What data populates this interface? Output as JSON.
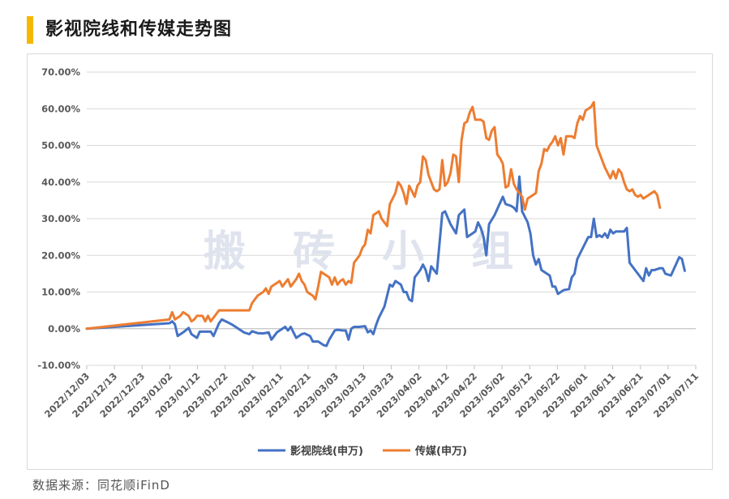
{
  "header": {
    "title": "影视院线和传媒走势图"
  },
  "footer": {
    "source": "数据来源：同花顺iFinD"
  },
  "watermark": "搬 砖 小 组",
  "colors": {
    "accent": "#f5b800",
    "series1": "#4472c4",
    "series2": "#ed7d31",
    "grid": "#d9d9d9"
  },
  "chart_data": {
    "type": "line",
    "title": "影视院线和传媒走势图",
    "xlabel": "",
    "ylabel": "",
    "ylim": [
      -10,
      70
    ],
    "ytick_labels": [
      "-10.00%",
      "0.00%",
      "10.00%",
      "20.00%",
      "30.00%",
      "40.00%",
      "50.00%",
      "60.00%",
      "70.00%"
    ],
    "ytick_values": [
      -10,
      0,
      10,
      20,
      30,
      40,
      50,
      60,
      70
    ],
    "xtick_labels": [
      "2022/12/03",
      "2022/12/13",
      "2022/12/23",
      "2023/01/02",
      "2023/01/12",
      "2023/01/22",
      "2023/02/01",
      "2023/02/11",
      "2023/02/21",
      "2023/03/03",
      "2023/03/13",
      "2023/03/23",
      "2023/04/02",
      "2023/04/12",
      "2023/04/22",
      "2023/05/02",
      "2023/05/12",
      "2023/05/22",
      "2023/06/01",
      "2023/06/11",
      "2023/06/21",
      "2023/07/01",
      "2023/07/11"
    ],
    "x_range_days": [
      0,
      221
    ],
    "legend": "bottom-center",
    "series": [
      {
        "name": "影视院线(申万)",
        "color": "#4472c4",
        "points": [
          [
            0,
            0
          ],
          [
            30,
            1.5
          ],
          [
            31,
            2
          ],
          [
            32,
            1.2
          ],
          [
            33,
            -2
          ],
          [
            35,
            -1
          ],
          [
            37,
            0.2
          ],
          [
            38,
            -1.5
          ],
          [
            40,
            -2.5
          ],
          [
            41,
            -0.8
          ],
          [
            43,
            -0.8
          ],
          [
            45,
            -0.8
          ],
          [
            46,
            -2
          ],
          [
            48,
            1.5
          ],
          [
            49,
            2.5
          ],
          [
            51,
            1.8
          ],
          [
            53,
            1
          ],
          [
            55,
            0
          ],
          [
            57,
            -1
          ],
          [
            59,
            -1.5
          ],
          [
            60,
            -0.7
          ],
          [
            62,
            -1.2
          ],
          [
            64,
            -1.3
          ],
          [
            66,
            -1
          ],
          [
            67,
            -3
          ],
          [
            68,
            -2
          ],
          [
            69,
            -1
          ],
          [
            71,
            0
          ],
          [
            72,
            0.5
          ],
          [
            73,
            -0.5
          ],
          [
            74,
            0.5
          ],
          [
            76,
            -2.5
          ],
          [
            78,
            -1.5
          ],
          [
            79,
            -1.3
          ],
          [
            81,
            -2
          ],
          [
            82,
            -3.5
          ],
          [
            84,
            -3.5
          ],
          [
            86,
            -4.5
          ],
          [
            87,
            -4.7
          ],
          [
            88,
            -3
          ],
          [
            90,
            -0.5
          ],
          [
            91,
            -0.3
          ],
          [
            93,
            -0.5
          ],
          [
            94,
            -0.5
          ],
          [
            95,
            -3
          ],
          [
            96,
            0
          ],
          [
            97,
            0.5
          ],
          [
            99,
            0.5
          ],
          [
            101,
            0.7
          ],
          [
            102,
            -1
          ],
          [
            103,
            -0.5
          ],
          [
            104,
            -1.5
          ],
          [
            105,
            1
          ],
          [
            106,
            3
          ],
          [
            108,
            6
          ],
          [
            110,
            12
          ],
          [
            111,
            11.5
          ],
          [
            112,
            13
          ],
          [
            114,
            12
          ],
          [
            115,
            10
          ],
          [
            116,
            10
          ],
          [
            117,
            8
          ],
          [
            118,
            7.5
          ],
          [
            119,
            14
          ],
          [
            121,
            16
          ],
          [
            122,
            17.5
          ],
          [
            123,
            16
          ],
          [
            124,
            13
          ],
          [
            125,
            17
          ],
          [
            126,
            16
          ],
          [
            127,
            15
          ],
          [
            129,
            31.5
          ],
          [
            130,
            32
          ],
          [
            132,
            28.5
          ],
          [
            134,
            26
          ],
          [
            135,
            31
          ],
          [
            137,
            32.5
          ],
          [
            138,
            25
          ],
          [
            140,
            26
          ],
          [
            141,
            26.5
          ],
          [
            142,
            29
          ],
          [
            143,
            27.5
          ],
          [
            144,
            25
          ],
          [
            145,
            20
          ],
          [
            146,
            28.5
          ],
          [
            148,
            31
          ],
          [
            151,
            36
          ],
          [
            152,
            34
          ],
          [
            154,
            33.5
          ],
          [
            155,
            33
          ],
          [
            156,
            32
          ],
          [
            157,
            41.5
          ],
          [
            158,
            32
          ],
          [
            160,
            29
          ],
          [
            161,
            26
          ],
          [
            162,
            20
          ],
          [
            163,
            17.5
          ],
          [
            164,
            19
          ],
          [
            165,
            16
          ],
          [
            167,
            15
          ],
          [
            168,
            14.5
          ],
          [
            169,
            11.5
          ],
          [
            170,
            11.5
          ],
          [
            171,
            9.5
          ],
          [
            172,
            10
          ],
          [
            173,
            10.5
          ],
          [
            175,
            10.8
          ],
          [
            176,
            14
          ],
          [
            177,
            15
          ],
          [
            178,
            19
          ],
          [
            179,
            20.5
          ],
          [
            180,
            22
          ],
          [
            182,
            25
          ],
          [
            183,
            25
          ],
          [
            184,
            30
          ],
          [
            185,
            25
          ],
          [
            186,
            25.5
          ],
          [
            187,
            25
          ],
          [
            188,
            26
          ],
          [
            189,
            24.8
          ],
          [
            190,
            27
          ],
          [
            191,
            26
          ],
          [
            192,
            26.5
          ],
          [
            193,
            26.5
          ],
          [
            195,
            26.5
          ],
          [
            196,
            27.5
          ],
          [
            197,
            18
          ],
          [
            199,
            16
          ],
          [
            201,
            14
          ],
          [
            202,
            13
          ],
          [
            203,
            16.5
          ],
          [
            204,
            14.5
          ],
          [
            205,
            16
          ],
          [
            206,
            16
          ],
          [
            208,
            16.5
          ],
          [
            209,
            16.5
          ],
          [
            210,
            15
          ],
          [
            212,
            14.5
          ],
          [
            215,
            19.5
          ],
          [
            216,
            19
          ],
          [
            217,
            15.8
          ]
        ]
      },
      {
        "name": "传媒(申万)",
        "color": "#ed7d31",
        "points": [
          [
            0,
            0
          ],
          [
            30,
            2.5
          ],
          [
            31,
            4.5
          ],
          [
            32,
            2.5
          ],
          [
            34,
            3.5
          ],
          [
            35,
            4.5
          ],
          [
            37,
            3.5
          ],
          [
            38,
            2
          ],
          [
            39,
            2.5
          ],
          [
            40,
            3.5
          ],
          [
            42,
            3.5
          ],
          [
            43,
            2
          ],
          [
            44,
            3.5
          ],
          [
            45,
            2
          ],
          [
            47,
            4
          ],
          [
            48,
            5
          ],
          [
            50,
            5
          ],
          [
            52,
            5
          ],
          [
            54,
            5
          ],
          [
            56,
            5
          ],
          [
            58,
            5
          ],
          [
            59,
            5
          ],
          [
            60,
            7
          ],
          [
            62,
            9
          ],
          [
            64,
            10
          ],
          [
            65,
            11
          ],
          [
            66,
            9.5
          ],
          [
            67,
            11.5
          ],
          [
            69,
            12.5
          ],
          [
            70,
            13
          ],
          [
            71,
            11.5
          ],
          [
            72,
            12.5
          ],
          [
            73,
            13.5
          ],
          [
            74,
            11.5
          ],
          [
            75,
            12.5
          ],
          [
            76,
            13.5
          ],
          [
            77,
            15
          ],
          [
            78,
            13
          ],
          [
            79,
            12
          ],
          [
            80,
            10
          ],
          [
            81,
            9.5
          ],
          [
            82,
            9
          ],
          [
            83,
            8
          ],
          [
            84,
            11.5
          ],
          [
            85,
            15.5
          ],
          [
            86,
            15
          ],
          [
            87,
            14.5
          ],
          [
            88,
            14
          ],
          [
            89,
            12
          ],
          [
            90,
            14
          ],
          [
            91,
            12
          ],
          [
            92,
            13
          ],
          [
            93,
            13.5
          ],
          [
            94,
            12
          ],
          [
            95,
            13
          ],
          [
            96,
            12.5
          ],
          [
            97,
            18
          ],
          [
            98,
            19
          ],
          [
            99,
            20
          ],
          [
            100,
            22
          ],
          [
            101,
            23
          ],
          [
            102,
            27
          ],
          [
            103,
            26
          ],
          [
            104,
            31
          ],
          [
            105,
            31.5
          ],
          [
            106,
            32
          ],
          [
            107,
            30
          ],
          [
            108,
            29
          ],
          [
            109,
            28
          ],
          [
            110,
            34
          ],
          [
            112,
            37
          ],
          [
            113,
            40
          ],
          [
            114,
            39
          ],
          [
            115,
            37
          ],
          [
            116,
            34
          ],
          [
            117,
            39
          ],
          [
            118,
            37.5
          ],
          [
            119,
            36
          ],
          [
            120,
            39
          ],
          [
            121,
            40
          ],
          [
            122,
            47
          ],
          [
            123,
            46
          ],
          [
            124,
            42
          ],
          [
            125,
            40
          ],
          [
            126,
            38
          ],
          [
            127,
            37.5
          ],
          [
            128,
            38
          ],
          [
            129,
            46
          ],
          [
            130,
            39
          ],
          [
            131,
            40
          ],
          [
            132,
            42.5
          ],
          [
            133,
            47.5
          ],
          [
            134,
            47
          ],
          [
            135,
            40
          ],
          [
            136,
            51.5
          ],
          [
            137,
            56
          ],
          [
            138,
            56.5
          ],
          [
            139,
            59
          ],
          [
            140,
            60.5
          ],
          [
            141,
            57
          ],
          [
            142,
            57
          ],
          [
            143,
            57
          ],
          [
            144,
            56.5
          ],
          [
            145,
            52
          ],
          [
            146,
            51.5
          ],
          [
            147,
            54
          ],
          [
            148,
            55
          ],
          [
            149,
            47.5
          ],
          [
            150,
            46.5
          ],
          [
            151,
            45
          ],
          [
            152,
            38.5
          ],
          [
            153,
            39
          ],
          [
            154,
            43.5
          ],
          [
            155,
            39.5
          ],
          [
            156,
            38
          ],
          [
            157,
            37
          ],
          [
            158,
            36
          ],
          [
            159,
            32.5
          ],
          [
            160,
            35.5
          ],
          [
            161,
            36
          ],
          [
            162,
            36.5
          ],
          [
            163,
            37
          ],
          [
            164,
            43
          ],
          [
            165,
            45
          ],
          [
            166,
            49
          ],
          [
            167,
            48.5
          ],
          [
            168,
            50
          ],
          [
            169,
            51
          ],
          [
            170,
            52.5
          ],
          [
            171,
            50
          ],
          [
            172,
            52
          ],
          [
            173,
            47.5
          ],
          [
            174,
            52.5
          ],
          [
            175,
            52.5
          ],
          [
            176,
            52.5
          ],
          [
            177,
            52
          ],
          [
            178,
            56
          ],
          [
            179,
            58
          ],
          [
            180,
            57
          ],
          [
            181,
            59.5
          ],
          [
            182,
            60
          ],
          [
            183,
            60.5
          ],
          [
            184,
            61.8
          ],
          [
            185,
            50
          ],
          [
            186,
            48
          ],
          [
            187,
            46
          ],
          [
            188,
            44
          ],
          [
            189,
            42.5
          ],
          [
            190,
            41
          ],
          [
            191,
            43
          ],
          [
            192,
            41
          ],
          [
            193,
            43.5
          ],
          [
            194,
            42.5
          ],
          [
            195,
            40
          ],
          [
            196,
            38
          ],
          [
            197,
            37.5
          ],
          [
            198,
            38
          ],
          [
            199,
            36.5
          ],
          [
            200,
            36
          ],
          [
            201,
            36.5
          ],
          [
            202,
            35.5
          ],
          [
            203,
            36
          ],
          [
            204,
            36.5
          ],
          [
            205,
            37
          ],
          [
            206,
            37.5
          ],
          [
            207,
            36.5
          ],
          [
            208,
            33
          ]
        ]
      }
    ]
  }
}
